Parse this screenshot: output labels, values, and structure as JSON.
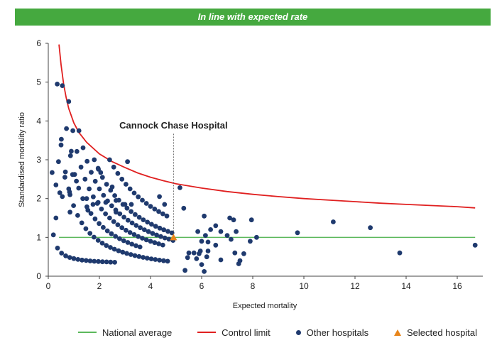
{
  "banner": {
    "text": "In line with expected rate"
  },
  "legend": {
    "national_average": "National average",
    "control_limit": "Control limit",
    "other_hospitals": "Other hospitals",
    "selected_hospital": "Selected hospital"
  },
  "colors": {
    "banner": "#45a93f",
    "national_average": "#5cb85c",
    "control_limit": "#e02020",
    "other_hospitals": "#1f3a6e",
    "selected_hospital": "#e8851a"
  },
  "chart_data": {
    "type": "scatter",
    "title": "",
    "xlabel": "Expected mortality",
    "ylabel": "Standardised mortality ratio",
    "xlim": [
      0,
      17
    ],
    "ylim": [
      0,
      6
    ],
    "x_ticks": [
      0,
      2,
      4,
      6,
      8,
      10,
      12,
      14,
      16
    ],
    "y_ticks": [
      0,
      1,
      2,
      3,
      4,
      5,
      6
    ],
    "grid": false,
    "legend_position": "bottom",
    "annotation": {
      "text": "Cannock Chase Hospital",
      "x": 4.9,
      "y": 1.0
    },
    "national_average": 1.0,
    "control_limit": [
      [
        0.42,
        5.97
      ],
      [
        0.5,
        5.45
      ],
      [
        0.6,
        4.95
      ],
      [
        0.7,
        4.6
      ],
      [
        0.8,
        4.32
      ],
      [
        1.0,
        3.95
      ],
      [
        1.2,
        3.7
      ],
      [
        1.5,
        3.45
      ],
      [
        2.0,
        3.15
      ],
      [
        2.5,
        2.95
      ],
      [
        3.0,
        2.8
      ],
      [
        3.5,
        2.66
      ],
      [
        4.0,
        2.55
      ],
      [
        4.5,
        2.46
      ],
      [
        5.0,
        2.38
      ],
      [
        6.0,
        2.27
      ],
      [
        7.0,
        2.18
      ],
      [
        8.0,
        2.11
      ],
      [
        9.0,
        2.05
      ],
      [
        10.0,
        2.0
      ],
      [
        11.0,
        1.96
      ],
      [
        12.0,
        1.92
      ],
      [
        13.0,
        1.88
      ],
      [
        14.0,
        1.85
      ],
      [
        15.0,
        1.82
      ],
      [
        16.0,
        1.79
      ],
      [
        16.7,
        1.76
      ]
    ],
    "selected_hospital": {
      "name": "Cannock Chase Hospital",
      "x": 4.9,
      "y": 1.0
    },
    "other_hospitals": [
      [
        0.15,
        2.67
      ],
      [
        0.3,
        2.35
      ],
      [
        0.4,
        2.95
      ],
      [
        0.45,
        2.15
      ],
      [
        0.5,
        3.38
      ],
      [
        0.55,
        2.05
      ],
      [
        0.65,
        2.55
      ],
      [
        0.8,
        2.25
      ],
      [
        0.85,
        2.1
      ],
      [
        0.9,
        3.22
      ],
      [
        0.95,
        2.62
      ],
      [
        1.1,
        2.45
      ],
      [
        0.85,
        1.65
      ],
      [
        0.3,
        1.5
      ],
      [
        1.95,
        2.78
      ],
      [
        2.05,
        2.67
      ],
      [
        2.5,
        2.3
      ],
      [
        2.65,
        1.95
      ],
      [
        3.1,
        2.95
      ],
      [
        1.5,
        2.0
      ],
      [
        1.95,
        1.9
      ],
      [
        1.75,
        1.85
      ],
      [
        1.55,
        1.7
      ],
      [
        2.25,
        1.9
      ],
      [
        2.65,
        1.65
      ],
      [
        3.0,
        1.85
      ],
      [
        3.25,
        1.85
      ],
      [
        4.35,
        2.05
      ],
      [
        4.55,
        1.85
      ],
      [
        5.15,
        2.28
      ],
      [
        5.3,
        1.75
      ],
      [
        6.1,
        1.55
      ],
      [
        6.15,
        1.05
      ],
      [
        6.35,
        1.2
      ],
      [
        6.55,
        1.3
      ],
      [
        6.75,
        1.15
      ],
      [
        6.55,
        0.8
      ],
      [
        6.0,
        0.9
      ],
      [
        6.25,
        0.65
      ],
      [
        5.9,
        0.58
      ],
      [
        6.0,
        0.3
      ],
      [
        6.1,
        0.12
      ],
      [
        6.2,
        0.5
      ],
      [
        5.5,
        0.6
      ],
      [
        5.7,
        0.6
      ],
      [
        5.8,
        0.45
      ],
      [
        5.45,
        0.48
      ],
      [
        5.35,
        0.15
      ],
      [
        5.85,
        1.15
      ],
      [
        5.95,
        0.65
      ],
      [
        6.25,
        0.88
      ],
      [
        6.75,
        0.42
      ],
      [
        7.1,
        1.5
      ],
      [
        7.25,
        1.45
      ],
      [
        7.35,
        1.15
      ],
      [
        7.15,
        0.95
      ],
      [
        7.0,
        1.05
      ],
      [
        7.3,
        0.6
      ],
      [
        7.5,
        0.4
      ],
      [
        7.45,
        0.32
      ],
      [
        7.65,
        0.58
      ],
      [
        7.95,
        1.45
      ],
      [
        7.9,
        0.9
      ],
      [
        8.15,
        1.0
      ],
      [
        9.75,
        1.12
      ],
      [
        11.15,
        1.4
      ],
      [
        12.6,
        1.25
      ],
      [
        13.75,
        0.6
      ],
      [
        16.7,
        0.8
      ]
    ]
  }
}
